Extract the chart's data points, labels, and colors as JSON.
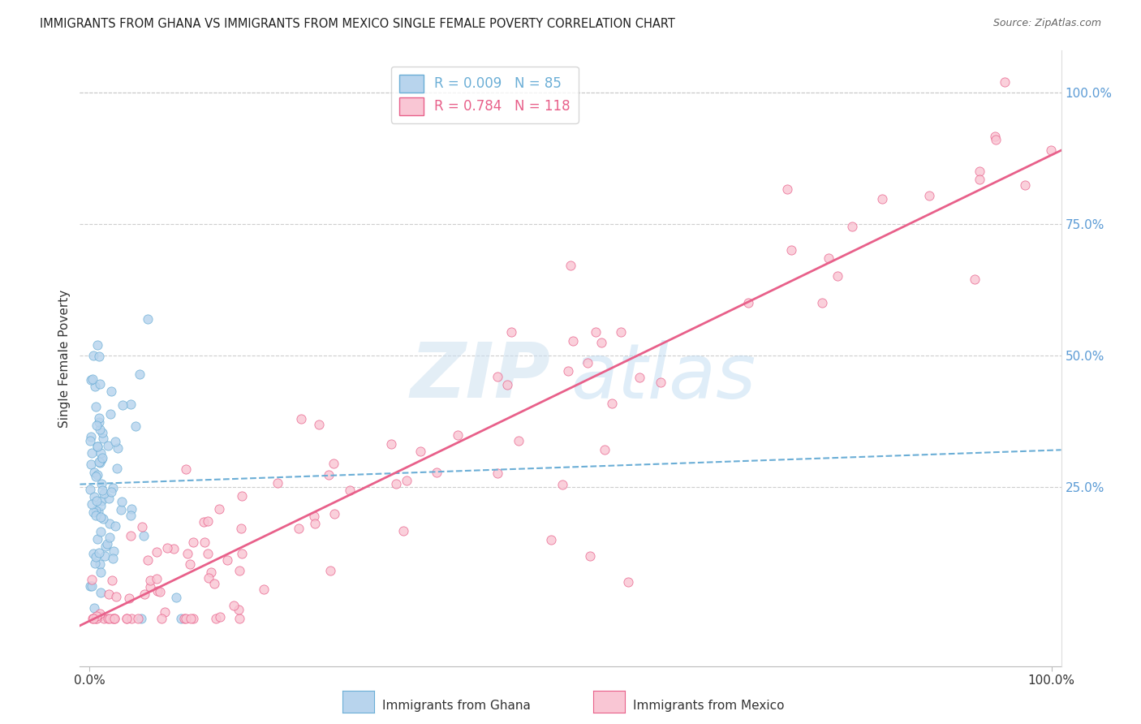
{
  "title": "IMMIGRANTS FROM GHANA VS IMMIGRANTS FROM MEXICO SINGLE FEMALE POVERTY CORRELATION CHART",
  "source": "Source: ZipAtlas.com",
  "ylabel": "Single Female Poverty",
  "legend_ghana": "Immigrants from Ghana",
  "legend_mexico": "Immigrants from Mexico",
  "ghana_R": "0.009",
  "ghana_N": "85",
  "mexico_R": "0.784",
  "mexico_N": "118",
  "ghana_fill_color": "#b8d4ed",
  "ghana_edge_color": "#6baed6",
  "mexico_fill_color": "#f9c6d4",
  "mexico_edge_color": "#e8608a",
  "watermark_zip_color": "#cce0f0",
  "watermark_atlas_color": "#b8d8f0",
  "background_color": "#ffffff",
  "grid_color": "#c8c8c8",
  "right_axis_color": "#5b9bd5",
  "title_color": "#222222",
  "source_color": "#666666"
}
